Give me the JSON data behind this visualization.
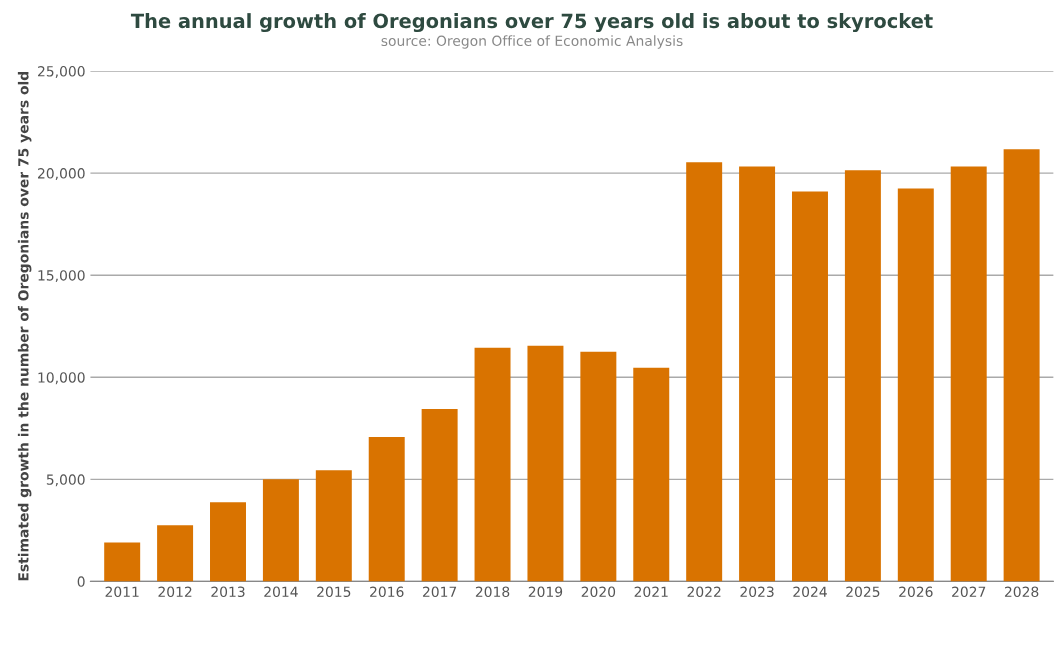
{
  "chart_data": {
    "type": "bar",
    "title": "The annual growth of Oregonians over 75 years old is about to skyrocket",
    "subtitle": "source: Oregon Office of Economic Analysis",
    "ylabel": "Estimated growth in the number of Oregonians over 75 years old",
    "categories": [
      "2011",
      "2012",
      "2013",
      "2014",
      "2015",
      "2016",
      "2017",
      "2018",
      "2019",
      "2020",
      "2021",
      "2022",
      "2023",
      "2024",
      "2025",
      "2026",
      "2027",
      "2028"
    ],
    "values": [
      1900,
      2750,
      3880,
      5000,
      5450,
      7070,
      8450,
      11440,
      11540,
      11250,
      10460,
      20530,
      20330,
      19100,
      20140,
      19250,
      20330,
      21170
    ],
    "color": "#d97300",
    "ylim": [
      0,
      25000
    ],
    "yticks": [
      {
        "value": 0,
        "label": "0"
      },
      {
        "value": 5000,
        "label": "5,000"
      },
      {
        "value": 10000,
        "label": "10,000"
      },
      {
        "value": 15000,
        "label": "15,000"
      },
      {
        "value": 20000,
        "label": "20,000"
      },
      {
        "value": 25000,
        "label": "25,000"
      }
    ],
    "grid": "y"
  }
}
